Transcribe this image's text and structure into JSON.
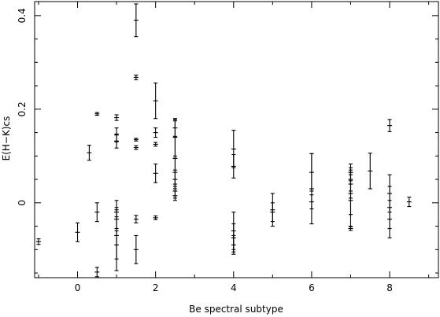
{
  "chart_data": {
    "type": "scatter",
    "title": "",
    "xlabel": "Be spectral subtype",
    "ylabel": "E(H−K)cs",
    "xlim": [
      -1.1,
      9.25
    ],
    "ylim": [
      -0.16,
      0.43
    ],
    "xticks": [
      0,
      2,
      4,
      6,
      8
    ],
    "yticks": [
      0,
      0.2,
      0.4
    ],
    "xtick_labels": [
      "0",
      "2",
      "4",
      "6",
      "8"
    ],
    "ytick_labels": [
      "0",
      "0.2",
      "0.4"
    ],
    "grid": false,
    "series": [
      {
        "points": [
          {
            "x": -1.0,
            "y": -0.083,
            "err": 0.006
          },
          {
            "x": 0.0,
            "y": -0.063,
            "err": 0.02
          },
          {
            "x": 0.3,
            "y": 0.107,
            "err": 0.016
          },
          {
            "x": 0.5,
            "y": 0.19,
            "err": 0.003
          },
          {
            "x": 0.5,
            "y": -0.02,
            "err": 0.02
          },
          {
            "x": 0.5,
            "y": -0.148,
            "err": 0.01
          },
          {
            "x": 1.0,
            "y": 0.182,
            "err": 0.006
          },
          {
            "x": 1.0,
            "y": 0.145,
            "err": 0.015
          },
          {
            "x": 1.0,
            "y": 0.132,
            "err": 0.015
          },
          {
            "x": 1.0,
            "y": -0.02,
            "err": 0.01
          },
          {
            "x": 1.0,
            "y": -0.035,
            "err": 0.02
          },
          {
            "x": 1.0,
            "y": -0.07,
            "err": 0.075
          },
          {
            "x": 1.0,
            "y": -0.09,
            "err": 0.03
          },
          {
            "x": 1.5,
            "y": 0.39,
            "err": 0.035
          },
          {
            "x": 1.5,
            "y": 0.268,
            "err": 0.005
          },
          {
            "x": 1.5,
            "y": 0.135,
            "err": 0.003
          },
          {
            "x": 1.5,
            "y": 0.118,
            "err": 0.004
          },
          {
            "x": 1.5,
            "y": -0.035,
            "err": 0.008
          },
          {
            "x": 1.5,
            "y": -0.1,
            "err": 0.03
          },
          {
            "x": 2.0,
            "y": 0.218,
            "err": 0.038
          },
          {
            "x": 2.0,
            "y": 0.15,
            "err": 0.01
          },
          {
            "x": 2.0,
            "y": 0.125,
            "err": 0.004
          },
          {
            "x": 2.0,
            "y": 0.063,
            "err": 0.02
          },
          {
            "x": 2.0,
            "y": -0.032,
            "err": 0.004
          },
          {
            "x": 2.5,
            "y": 0.16,
            "err": 0.018
          },
          {
            "x": 2.5,
            "y": 0.14,
            "err": 0.04
          },
          {
            "x": 2.5,
            "y": 0.095,
            "err": 0.08
          },
          {
            "x": 2.5,
            "y": 0.065,
            "err": 0.03
          },
          {
            "x": 2.5,
            "y": 0.05,
            "err": 0.02
          },
          {
            "x": 2.5,
            "y": 0.025,
            "err": 0.015
          },
          {
            "x": 2.5,
            "y": 0.015,
            "err": 0.01
          },
          {
            "x": 4.0,
            "y": 0.115,
            "err": 0.04
          },
          {
            "x": 4.0,
            "y": 0.078,
            "err": 0.025
          },
          {
            "x": 4.0,
            "y": -0.06,
            "err": 0.04
          },
          {
            "x": 4.0,
            "y": -0.075,
            "err": 0.03
          },
          {
            "x": 4.0,
            "y": -0.09,
            "err": 0.02
          },
          {
            "x": 5.0,
            "y": -0.015,
            "err": 0.035
          },
          {
            "x": 5.0,
            "y": -0.02,
            "err": 0.02
          },
          {
            "x": 6.0,
            "y": 0.065,
            "err": 0.04
          },
          {
            "x": 6.0,
            "y": 0.03,
            "err": 0.075
          },
          {
            "x": 6.0,
            "y": 0.002,
            "err": 0.015
          },
          {
            "x": 7.0,
            "y": 0.065,
            "err": 0.018
          },
          {
            "x": 7.0,
            "y": 0.05,
            "err": 0.025
          },
          {
            "x": 7.0,
            "y": 0.04,
            "err": 0.03
          },
          {
            "x": 7.0,
            "y": 0.02,
            "err": 0.045
          },
          {
            "x": 7.0,
            "y": 0.005,
            "err": 0.055
          },
          {
            "x": 7.0,
            "y": -0.055,
            "err": 0.004
          },
          {
            "x": 7.5,
            "y": 0.068,
            "err": 0.038
          },
          {
            "x": 8.0,
            "y": 0.165,
            "err": 0.013
          },
          {
            "x": 8.0,
            "y": 0.02,
            "err": 0.04
          },
          {
            "x": 8.0,
            "y": -0.01,
            "err": 0.045
          },
          {
            "x": 8.0,
            "y": -0.035,
            "err": 0.04
          },
          {
            "x": 8.5,
            "y": 0.002,
            "err": 0.01
          }
        ]
      }
    ]
  }
}
